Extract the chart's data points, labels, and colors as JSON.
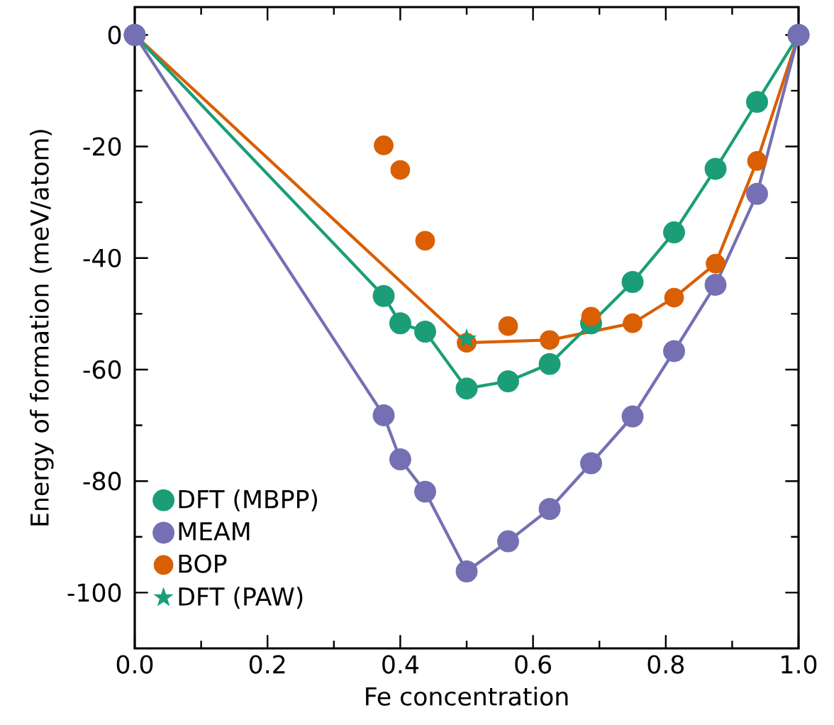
{
  "chart_data": {
    "type": "scatter",
    "xlabel": "Fe concentration",
    "ylabel": "Energy of formation (meV/atom)",
    "x": [
      0,
      0.375,
      0.4,
      0.4375,
      0.5,
      0.5625,
      0.625,
      0.6875,
      0.75,
      0.8125,
      0.875,
      0.9375,
      1
    ],
    "series": [
      {
        "name": "BOP",
        "marker": "circle",
        "color": "#d95f02",
        "values": [
          null,
          -19.8,
          -24.2,
          -36.9,
          -55.2,
          -52.2,
          -54.7,
          -50.5,
          -51.7,
          -47.1,
          -41,
          -22.6,
          null
        ]
      },
      {
        "type": "line",
        "marker": "none",
        "color": "#d95f02",
        "x": [
          0,
          0.5,
          0.625,
          0.75,
          0.8125,
          0.875,
          0.9375,
          1
        ],
        "values": [
          0,
          -55.2,
          -54.7,
          -51.7,
          -47.1,
          -41,
          -22.6,
          0
        ]
      },
      {
        "name": "DFT (MBPP)",
        "type": "line",
        "marker": "circle",
        "color": "#1b9e77",
        "values": [
          0,
          -46.8,
          -51.7,
          -53.2,
          -63.4,
          -62.1,
          -59,
          -51.7,
          -44.3,
          -35.4,
          -24,
          -12,
          0
        ]
      },
      {
        "name": "DFT (PAW)",
        "marker": "star",
        "color": "#1b9e77",
        "x": [
          0.5
        ],
        "values": [
          -54.5
        ]
      },
      {
        "name": "MEAM",
        "type": "line",
        "marker": "circle",
        "color": "#7570b3",
        "values": [
          0,
          -68.2,
          -76.1,
          -81.9,
          -96.2,
          -90.8,
          -85,
          -76.8,
          -68.4,
          -56.7,
          -44.8,
          -28.5,
          0
        ]
      }
    ],
    "xlim": [
      0,
      1
    ],
    "ylim": [
      -110,
      5
    ],
    "xticks": [
      {
        "value": 0,
        "label": "0.0"
      },
      {
        "value": 0.2,
        "label": "0.2"
      },
      {
        "value": 0.4,
        "label": "0.4"
      },
      {
        "value": 0.6,
        "label": "0.6"
      },
      {
        "value": 0.8,
        "label": "0.8"
      },
      {
        "value": 1,
        "label": "1.0"
      }
    ],
    "yticks": [
      -100,
      -80,
      -60,
      -40,
      -20,
      0
    ],
    "grid": false,
    "legend": "bottom left"
  }
}
